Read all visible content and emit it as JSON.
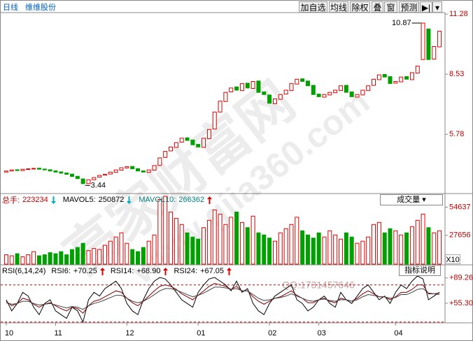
{
  "toolbar": {
    "period": "日线",
    "name": "维维股份",
    "buttons": [
      "加自选",
      "均线",
      "除权",
      "叠",
      "窗",
      "预测"
    ]
  },
  "watermark": {
    "title": "高家财富网",
    "url": "www.gjia360.com",
    "qq": "QQ:1731457646"
  },
  "chart_data": [
    {
      "type": "candlestick",
      "ylim": [
        3.1,
        11.35
      ],
      "yticks": [
        5.78,
        8.53,
        11.28
      ],
      "max_label": 10.87,
      "min_label": 3.44,
      "up_color": "#e00000",
      "down_color": "#00a000",
      "categories": [
        "10",
        null,
        null,
        null,
        null,
        null,
        null,
        null,
        null,
        "11",
        null,
        null,
        null,
        null,
        null,
        null,
        null,
        null,
        null,
        null,
        null,
        null,
        "12",
        null,
        null,
        null,
        null,
        null,
        null,
        null,
        null,
        null,
        null,
        null,
        null,
        "01",
        null,
        null,
        null,
        null,
        null,
        null,
        null,
        null,
        null,
        null,
        null,
        null,
        "02",
        null,
        null,
        null,
        null,
        null,
        null,
        null,
        null,
        "03",
        null,
        null,
        null,
        null,
        null,
        null,
        null,
        null,
        null,
        null,
        null,
        null,
        null,
        "04",
        null,
        null,
        null,
        null,
        null,
        null,
        null,
        null
      ],
      "open": [
        4.05,
        4.1,
        4.16,
        4.12,
        4.17,
        4.2,
        4.23,
        4.19,
        4.16,
        4.11,
        4.06,
        4.01,
        3.96,
        3.86,
        3.74,
        3.52,
        3.7,
        3.82,
        3.91,
        3.96,
        4.04,
        4.14,
        4.24,
        4.31,
        4.21,
        4.11,
        4.04,
        4.14,
        4.36,
        4.72,
        5.02,
        5.18,
        5.42,
        5.62,
        5.52,
        5.32,
        5.18,
        5.58,
        6.02,
        6.8,
        7.28,
        7.72,
        7.95,
        7.78,
        8.12,
        7.88,
        8.22,
        7.72,
        7.58,
        7.18,
        7.38,
        7.62,
        7.78,
        8.08,
        8.32,
        8.22,
        8.02,
        7.62,
        7.48,
        7.58,
        7.68,
        7.78,
        8.02,
        7.72,
        7.48,
        7.58,
        7.78,
        8.02,
        8.28,
        8.52,
        8.42,
        8.12,
        8.18,
        8.42,
        8.28,
        8.58,
        9.2,
        10.6,
        9.22,
        9.78
      ],
      "close": [
        4.1,
        4.15,
        4.12,
        4.18,
        4.2,
        4.22,
        4.18,
        4.15,
        4.1,
        4.05,
        4.0,
        3.95,
        3.85,
        3.75,
        3.52,
        3.7,
        3.8,
        3.9,
        3.95,
        4.05,
        4.15,
        4.25,
        4.3,
        4.2,
        4.1,
        4.05,
        4.15,
        4.35,
        4.7,
        5.0,
        5.2,
        5.4,
        5.6,
        5.5,
        5.3,
        5.2,
        5.6,
        6.0,
        6.8,
        7.3,
        7.7,
        7.9,
        7.8,
        8.1,
        7.9,
        8.2,
        7.7,
        7.6,
        7.2,
        7.4,
        7.6,
        7.8,
        8.1,
        8.3,
        8.2,
        8.0,
        7.6,
        7.5,
        7.6,
        7.7,
        7.8,
        8.0,
        7.7,
        7.5,
        7.6,
        7.8,
        8.0,
        8.3,
        8.5,
        8.4,
        8.1,
        8.2,
        8.4,
        8.3,
        8.6,
        8.9,
        10.87,
        9.2,
        9.8,
        10.5
      ]
    },
    {
      "type": "bar",
      "ylim": [
        0,
        67000
      ],
      "yticks": [
        27656,
        54637
      ],
      "indicator": "成交量",
      "scale_label": "X10",
      "readouts": [
        {
          "label": "总手:",
          "value": 223234,
          "direction": "down",
          "color": "#c00000"
        },
        {
          "label": "MAVOL5:",
          "value": 250872,
          "direction": "down",
          "color": "#000000"
        },
        {
          "label": "MAVOL10:",
          "value": 266362,
          "direction": "up",
          "color": "#008080"
        }
      ],
      "values": [
        9000,
        8000,
        10000,
        7000,
        9000,
        12000,
        8000,
        9000,
        11000,
        10000,
        12000,
        9000,
        14000,
        16000,
        20000,
        13000,
        15000,
        14000,
        18000,
        22000,
        26000,
        30000,
        20000,
        14000,
        12000,
        16000,
        22000,
        28000,
        62000,
        65000,
        50000,
        44000,
        38000,
        30000,
        26000,
        24000,
        35000,
        42000,
        52000,
        48000,
        38000,
        45000,
        50000,
        40000,
        35000,
        46000,
        30000,
        28000,
        25000,
        22000,
        30000,
        34000,
        38000,
        45000,
        32000,
        28000,
        25000,
        30000,
        26000,
        32000,
        28000,
        24000,
        30000,
        26000,
        20000,
        22000,
        26000,
        38000,
        40000,
        30000,
        34000,
        32000,
        28000,
        30000,
        36000,
        42000,
        48000,
        35000,
        30000,
        32000
      ]
    },
    {
      "type": "line",
      "title": "RSI(6,14,24)",
      "help": "指标说明",
      "ylim": [
        29,
        106
      ],
      "yticks": [
        {
          "value": 55.3,
          "label": "+55.30"
        },
        {
          "value": 89.26,
          "label": "+89.26"
        }
      ],
      "levels": [
        80,
        30
      ],
      "readouts": [
        {
          "label": "RSI6:",
          "value": 70.25,
          "value_label": "+70.25",
          "direction": "up",
          "color": "#000000"
        },
        {
          "label": "RSI14:",
          "value": 68.9,
          "value_label": "+68.90",
          "direction": "up",
          "color": "#000000"
        },
        {
          "label": "RSI24:",
          "value": 67.05,
          "value_label": "+67.05",
          "direction": "up",
          "color": "#000000"
        }
      ],
      "series": [
        {
          "color": "#000000",
          "values": [
            60,
            45,
            55,
            70,
            65,
            50,
            40,
            55,
            60,
            45,
            40,
            35,
            50,
            45,
            30,
            60,
            70,
            65,
            75,
            80,
            85,
            75,
            55,
            45,
            40,
            60,
            75,
            85,
            90,
            88,
            80,
            70,
            60,
            55,
            50,
            70,
            80,
            88,
            90,
            85,
            80,
            72,
            85,
            70,
            75,
            55,
            45,
            40,
            55,
            65,
            70,
            75,
            80,
            60,
            55,
            45,
            50,
            60,
            65,
            55,
            50,
            70,
            60,
            55,
            65,
            75,
            80,
            70,
            60,
            65,
            55,
            70,
            80,
            75,
            85,
            92,
            88,
            60,
            65,
            70
          ]
        },
        {
          "color": "#800000",
          "values": [
            58,
            52,
            55,
            62,
            60,
            54,
            50,
            54,
            56,
            52,
            48,
            45,
            50,
            48,
            42,
            52,
            58,
            60,
            64,
            68,
            72,
            70,
            62,
            56,
            52,
            58,
            65,
            72,
            78,
            80,
            78,
            74,
            68,
            64,
            60,
            66,
            72,
            78,
            82,
            80,
            78,
            74,
            78,
            72,
            72,
            64,
            58,
            54,
            58,
            62,
            64,
            68,
            72,
            66,
            62,
            56,
            56,
            60,
            62,
            58,
            56,
            62,
            60,
            58,
            62,
            68,
            72,
            68,
            64,
            64,
            60,
            64,
            70,
            70,
            74,
            80,
            80,
            68,
            68,
            69
          ]
        },
        {
          "color": "#404040",
          "values": [
            56,
            54,
            55,
            58,
            58,
            55,
            53,
            54,
            55,
            53,
            51,
            49,
            51,
            50,
            47,
            52,
            55,
            57,
            60,
            63,
            66,
            66,
            62,
            58,
            56,
            58,
            62,
            67,
            72,
            75,
            75,
            73,
            70,
            67,
            64,
            66,
            69,
            73,
            77,
            77,
            76,
            74,
            75,
            72,
            72,
            67,
            62,
            59,
            60,
            62,
            63,
            65,
            68,
            65,
            62,
            59,
            58,
            60,
            61,
            59,
            58,
            60,
            60,
            58,
            60,
            64,
            67,
            66,
            64,
            64,
            62,
            63,
            67,
            67,
            70,
            74,
            75,
            69,
            68,
            67
          ]
        }
      ]
    }
  ]
}
